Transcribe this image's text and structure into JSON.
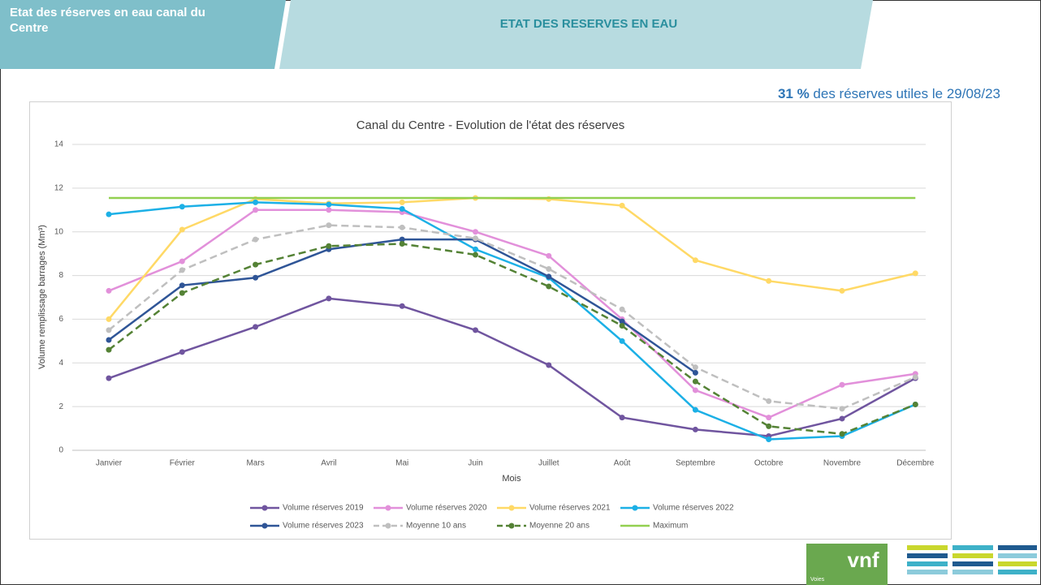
{
  "header": {
    "section": "Etat des réserves en eau canal du Centre",
    "title": "ETAT DES RESERVES EN EAU"
  },
  "summary": {
    "highlight": "31 %",
    "text": "des réserves utiles le 29/08/23"
  },
  "logo": {
    "name": "vnf",
    "tagline": "Voies"
  },
  "chart_data": {
    "type": "line",
    "title": "Canal du Centre - Evolution de l'état des réserves",
    "x_label": "Mois",
    "y_label": "Volume remplissage barrages (Mm³)",
    "categories": [
      "Janvier",
      "Février",
      "Mars",
      "Avril",
      "Mai",
      "Juin",
      "Juillet",
      "Août",
      "Septembre",
      "Octobre",
      "Novembre",
      "Décembre"
    ],
    "ylim": [
      0,
      14
    ],
    "yticks": [
      0,
      2,
      4,
      6,
      8,
      10,
      12,
      14
    ],
    "grid": true,
    "legend": "bottom",
    "series": [
      {
        "name": "Volume réserves 2019",
        "color": "#70559f",
        "markers": true,
        "dashed": false,
        "values": [
          3.3,
          4.5,
          5.65,
          6.95,
          6.6,
          5.5,
          3.9,
          1.5,
          0.95,
          0.65,
          1.45,
          3.3
        ]
      },
      {
        "name": "Volume réserves 2020",
        "color": "#e290da",
        "markers": true,
        "dashed": false,
        "values": [
          7.3,
          8.65,
          11.0,
          11.0,
          10.9,
          10.0,
          8.9,
          6.0,
          2.75,
          1.5,
          3.0,
          3.5
        ]
      },
      {
        "name": "Volume réserves 2021",
        "color": "#ffd966",
        "markers": true,
        "dashed": false,
        "values": [
          6.0,
          10.1,
          11.5,
          11.3,
          11.35,
          11.55,
          11.5,
          11.2,
          8.7,
          7.75,
          7.3,
          8.1
        ]
      },
      {
        "name": "Volume réserves 2022",
        "color": "#1cb0e6",
        "markers": true,
        "dashed": false,
        "values": [
          10.8,
          11.15,
          11.35,
          11.25,
          11.05,
          9.2,
          7.9,
          5.0,
          1.85,
          0.5,
          0.65,
          2.1
        ]
      },
      {
        "name": "Volume réserves 2023",
        "color": "#2f5597",
        "markers": true,
        "dashed": false,
        "values": [
          5.05,
          7.55,
          7.9,
          9.2,
          9.65,
          9.65,
          7.95,
          5.9,
          3.55,
          null,
          null,
          null
        ]
      },
      {
        "name": "Moyenne 10 ans",
        "color": "#bfbfbf",
        "markers": true,
        "dashed": true,
        "values": [
          5.5,
          8.25,
          9.65,
          10.3,
          10.2,
          9.7,
          8.3,
          6.45,
          3.8,
          2.25,
          1.9,
          3.35
        ]
      },
      {
        "name": "Moyenne 20 ans",
        "color": "#548235",
        "markers": true,
        "dashed": true,
        "values": [
          4.6,
          7.2,
          8.5,
          9.35,
          9.45,
          8.95,
          7.5,
          5.7,
          3.15,
          1.1,
          0.75,
          2.1
        ]
      },
      {
        "name": "Maximum",
        "color": "#92d050",
        "markers": false,
        "dashed": false,
        "values": [
          11.55,
          11.55,
          11.55,
          11.55,
          11.55,
          11.55,
          11.55,
          11.55,
          11.55,
          11.55,
          11.55,
          11.55
        ]
      }
    ]
  }
}
